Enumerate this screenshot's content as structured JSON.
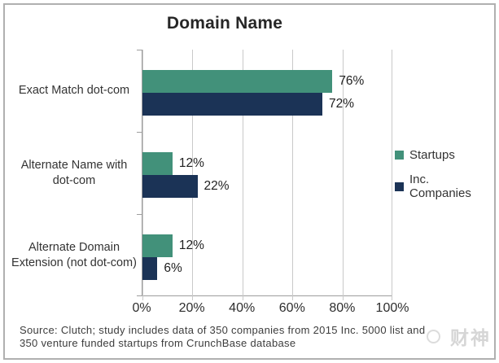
{
  "title": "Domain Name",
  "chart_data": {
    "type": "bar",
    "orientation": "horizontal",
    "categories": [
      "Exact Match dot-com",
      "Alternate Name with dot-com",
      "Alternate Domain Extension (not dot-com)"
    ],
    "series": [
      {
        "name": "Startups",
        "color": "#42917A",
        "values": [
          76,
          12,
          12
        ],
        "labels": [
          "76%",
          "12%",
          "12%"
        ]
      },
      {
        "name": "Inc. Companies",
        "color": "#1B3356",
        "values": [
          72,
          22,
          6
        ],
        "labels": [
          "72%",
          "22%",
          "6%"
        ]
      }
    ],
    "xlim": [
      0,
      100
    ],
    "x_tick_labels": [
      "0%",
      "20%",
      "40%",
      "60%",
      "80%",
      "100%"
    ],
    "grid": "vertical",
    "legend_position": "right"
  },
  "source_note": {
    "line1": "Source: Clutch; study includes data of 350 companies from 2015 Inc. 5000 list and",
    "line2": "350 venture funded startups from CrunchBase database"
  },
  "watermark": {
    "text": "财神"
  },
  "ui_colors": {
    "frame_border": "#B0B0B0",
    "gridline": "#C9C9C9",
    "axis": "#9E9E9E",
    "title_text": "#262626",
    "watermark": "#D6D6D6"
  }
}
